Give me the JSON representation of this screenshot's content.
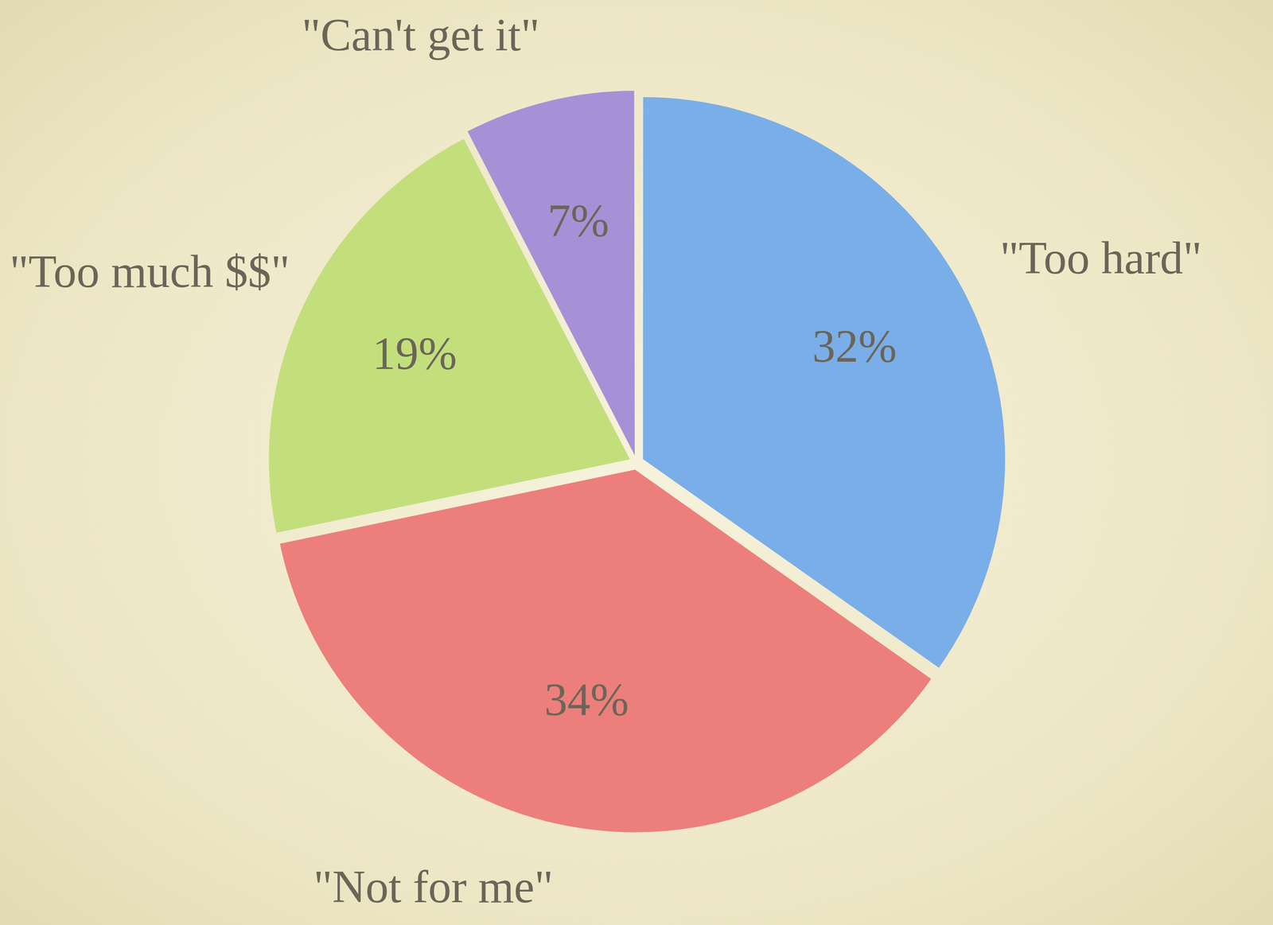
{
  "chart_data": {
    "type": "pie",
    "categories": [
      "\"Too hard\"",
      "\"Not for me\"",
      "\"Too much $$\"",
      "\"Can't get it\""
    ],
    "values": [
      32,
      34,
      19,
      7
    ],
    "value_labels": [
      "32%",
      "34%",
      "19%",
      "7%"
    ],
    "colors": [
      "#7aaee8",
      "#ec7f7b",
      "#c3df7c",
      "#a890d6"
    ],
    "data_labels": true
  }
}
